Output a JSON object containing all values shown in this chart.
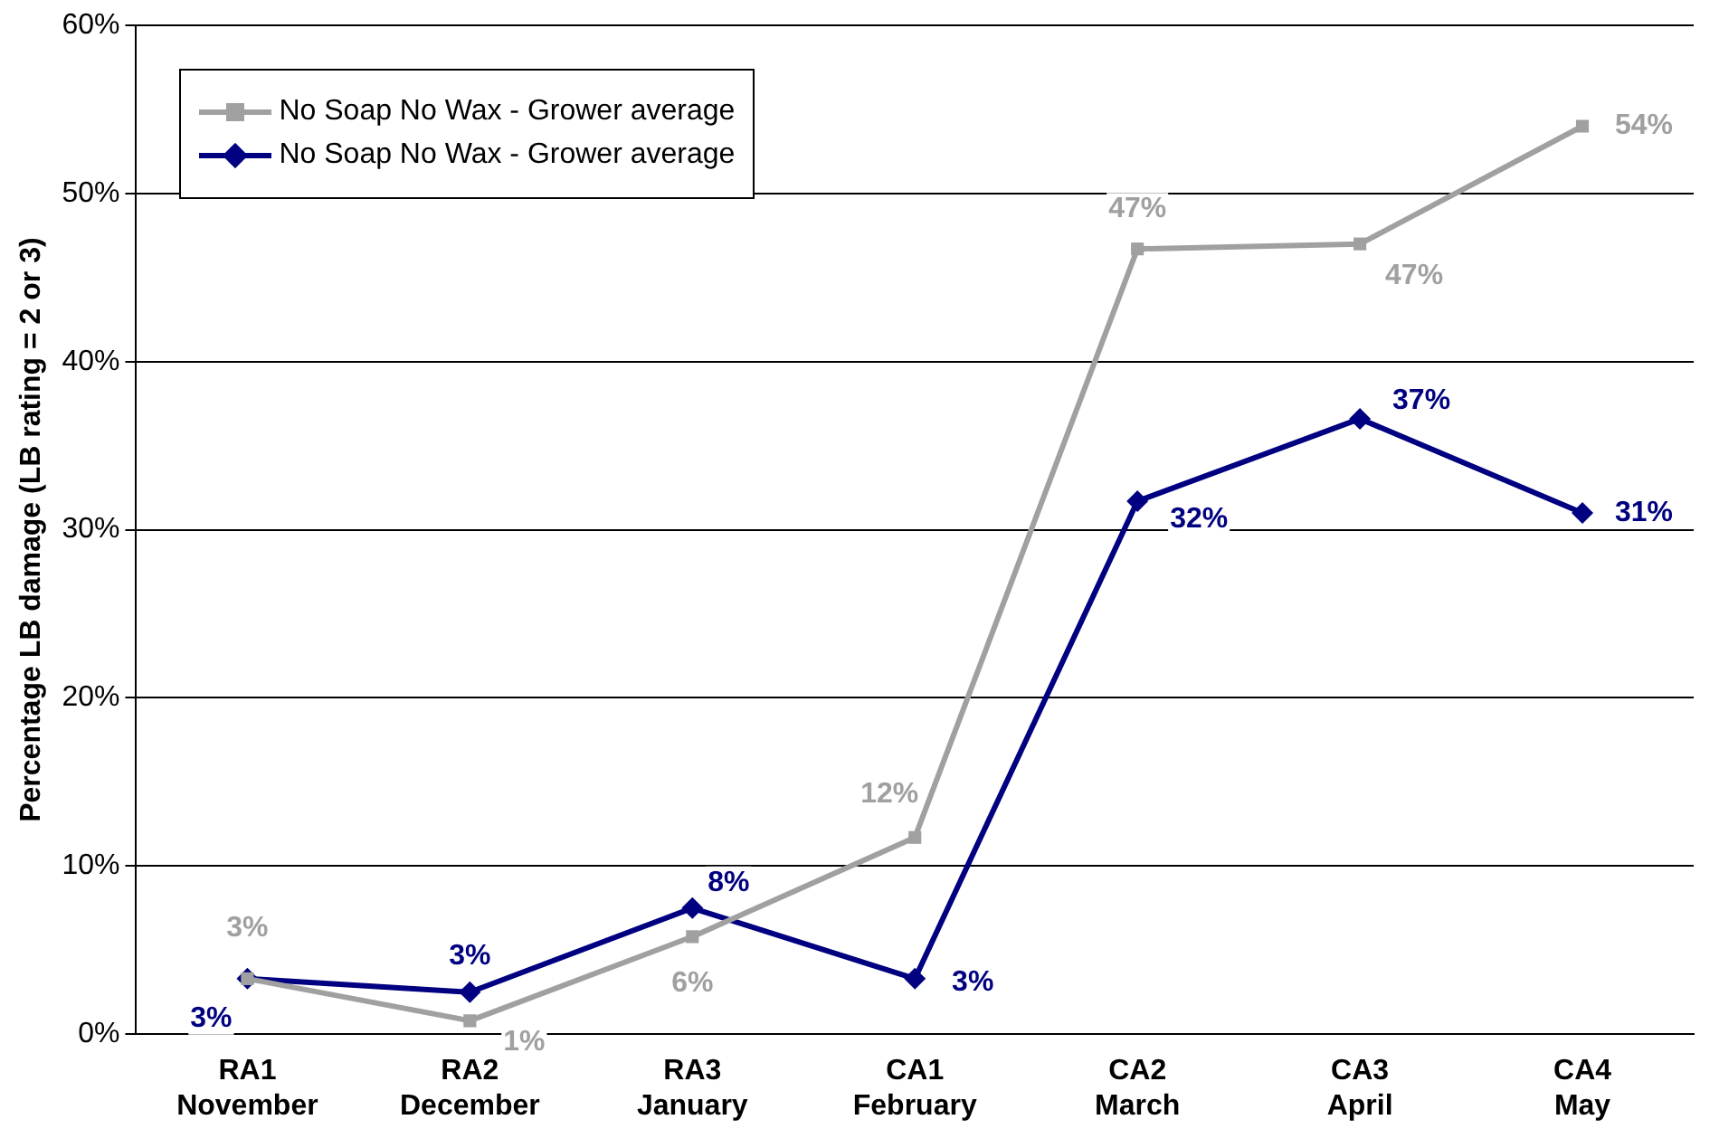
{
  "chart_data": {
    "type": "line",
    "ylabel": "Percentage LB damage (LB rating = 2 or 3)",
    "categories": [
      "RA1\nNovember",
      "RA2\nDecember",
      "RA3\nJanuary",
      "CA1\nFebruary",
      "CA2\nMarch",
      "CA3\nApril",
      "CA4\nMay"
    ],
    "series": [
      {
        "name": "No Soap No Wax - Grower average",
        "color": "#a0a0a0",
        "marker": "square",
        "values": [
          3.3,
          0.8,
          5.8,
          11.7,
          46.7,
          47.0,
          54.0
        ],
        "value_labels": [
          "3%",
          "1%",
          "6%",
          "12%",
          "47%",
          "47%",
          "54%"
        ]
      },
      {
        "name": "No Soap No Wax - Grower average",
        "color": "#000080",
        "marker": "diamond",
        "values": [
          3.3,
          2.5,
          7.5,
          3.3,
          31.7,
          36.6,
          31.0
        ],
        "value_labels": [
          "3%",
          "3%",
          "8%",
          "3%",
          "32%",
          "37%",
          "31%"
        ]
      }
    ],
    "ylim": [
      0,
      60
    ],
    "yticks": [
      {
        "value": 0,
        "label": "0%"
      },
      {
        "value": 10,
        "label": "10%"
      },
      {
        "value": 20,
        "label": "20%"
      },
      {
        "value": 30,
        "label": "30%"
      },
      {
        "value": 40,
        "label": "40%"
      },
      {
        "value": 50,
        "label": "50%"
      },
      {
        "value": 60,
        "label": "60%"
      }
    ],
    "grid": "y",
    "legend": "top left"
  }
}
